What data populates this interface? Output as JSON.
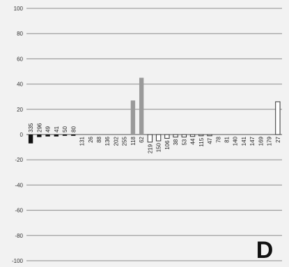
{
  "chart_data": {
    "type": "bar",
    "panel_label": "D",
    "ylim": [
      -100,
      100
    ],
    "yticks": [
      100,
      80,
      60,
      40,
      20,
      0,
      -20,
      -40,
      -60,
      -80,
      -100
    ],
    "grid": true,
    "categories": [
      "335",
      "296",
      "49",
      "41",
      "50",
      "80",
      "131",
      "26",
      "88",
      "136",
      "202",
      "255",
      "118",
      "62",
      "219",
      "150",
      "106",
      "38",
      "53",
      "44",
      "115",
      "47",
      "78",
      "81",
      "140",
      "141",
      "147",
      "169",
      "179",
      "27"
    ],
    "values": [
      -7,
      -2,
      -1.5,
      -1.5,
      -1,
      -1,
      0,
      0,
      0,
      0,
      0,
      0,
      27,
      45,
      -6,
      -5,
      -3,
      -2,
      -2,
      -1.5,
      -1,
      -1,
      0,
      0,
      0,
      0,
      0,
      0,
      0,
      26
    ],
    "bar_styles": [
      "black",
      "black",
      "black",
      "black",
      "black",
      "black",
      "black",
      "black",
      "black",
      "black",
      "black",
      "black",
      "gray",
      "gray",
      "white",
      "white",
      "white",
      "white",
      "white",
      "white",
      "white",
      "white",
      "white",
      "white",
      "white",
      "white",
      "white",
      "white",
      "white",
      "white"
    ],
    "colors": {
      "black": "#111111",
      "gray": "#9a9a9a",
      "white": "#ffffff",
      "outline": "#333333",
      "grid": "#8c8c8c",
      "axis": "#555555"
    }
  }
}
